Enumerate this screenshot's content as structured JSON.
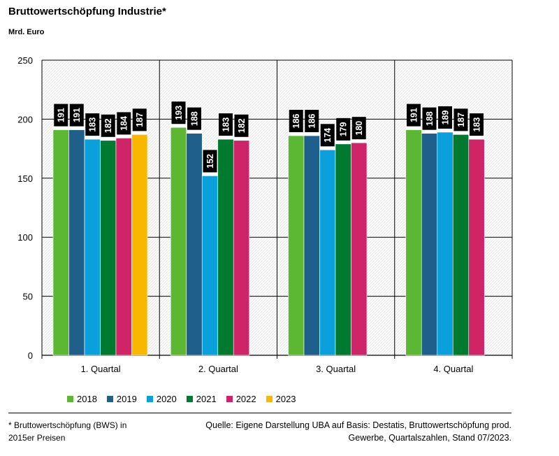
{
  "chart_data": {
    "type": "bar",
    "title": "Bruttowertschöpfung Industrie*",
    "ylabel": "Mrd. Euro",
    "xlabel": "",
    "categories": [
      "1. Quartal",
      "2. Quartal",
      "3. Quartal",
      "4. Quartal"
    ],
    "ylim": [
      0,
      250
    ],
    "yticks": [
      0,
      50,
      100,
      150,
      200,
      250
    ],
    "grid": true,
    "legend_position": "bottom",
    "series": [
      {
        "name": "2018",
        "color": "#5cb833",
        "values": [
          191,
          193,
          186,
          191
        ]
      },
      {
        "name": "2019",
        "color": "#1f5f8b",
        "values": [
          191,
          188,
          186,
          188
        ]
      },
      {
        "name": "2020",
        "color": "#0aa0dc",
        "values": [
          183,
          152,
          174,
          189
        ]
      },
      {
        "name": "2021",
        "color": "#007a2f",
        "values": [
          182,
          183,
          179,
          187
        ]
      },
      {
        "name": "2022",
        "color": "#cf2468",
        "values": [
          184,
          182,
          180,
          183
        ]
      },
      {
        "name": "2023",
        "color": "#f9b700",
        "values": [
          187,
          null,
          null,
          null
        ]
      }
    ]
  },
  "footnote": "* Bruttowertschöpfung (BWS) in 2015er Preisen",
  "source": "Quelle: Eigene Darstellung UBA auf Basis: Destatis, Bruttowertschöpfung prod. Gewerbe, Quartalszahlen, Stand 07/2023."
}
